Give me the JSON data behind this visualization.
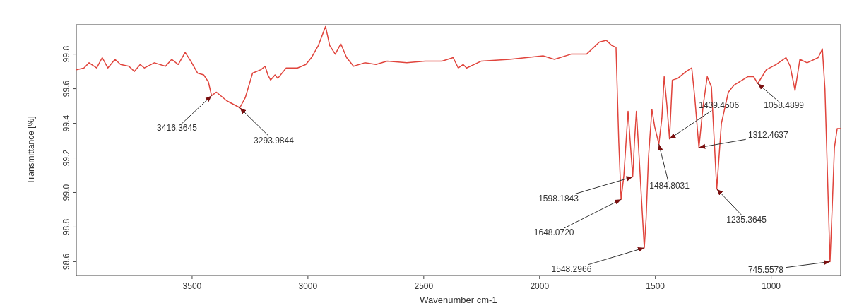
{
  "chart_data": {
    "type": "line",
    "xlabel": "Wavenumber cm-1",
    "ylabel": "Transmittance [%]",
    "xlim": [
      4000,
      700
    ],
    "ylim": [
      98.52,
      99.97
    ],
    "xticks": [
      3500,
      3000,
      2500,
      2000,
      1500,
      1000
    ],
    "yticks": [
      98.6,
      98.8,
      {
        "value": 99,
        "label": "99.0"
      },
      99.2,
      99.4,
      99.6,
      99.8
    ],
    "series": [
      {
        "color": "#e0443c",
        "x": [
          4000,
          3967,
          3945,
          3912,
          3888,
          3864,
          3833,
          3809,
          3773,
          3749,
          3724,
          3706,
          3663,
          3615,
          3588,
          3560,
          3530,
          3506,
          3476,
          3450,
          3430,
          3416,
          3395,
          3350,
          3294,
          3270,
          3250,
          3239,
          3203,
          3185,
          3173,
          3161,
          3142,
          3130,
          3094,
          3045,
          3009,
          2985,
          2955,
          2924,
          2906,
          2882,
          2858,
          2833,
          2803,
          2755,
          2706,
          2658,
          2573,
          2494,
          2421,
          2373,
          2351,
          2330,
          2315,
          2251,
          2130,
          1985,
          1936,
          1864,
          1797,
          1742,
          1712,
          1688,
          1670,
          1658,
          1648,
          1636,
          1618,
          1609,
          1598,
          1590,
          1582,
          1570,
          1548,
          1540,
          1530,
          1515,
          1503,
          1485,
          1472,
          1462,
          1450,
          1439,
          1427,
          1403,
          1367,
          1343,
          1330,
          1312,
          1294,
          1276,
          1258,
          1235,
          1215,
          1185,
          1161,
          1100,
          1076,
          1058,
          1021,
          979,
          936,
          918,
          897,
          876,
          845,
          797,
          779,
          768,
          746,
          735,
          727,
          715,
          700
        ],
        "values": [
          99.71,
          99.72,
          99.75,
          99.72,
          99.78,
          99.72,
          99.77,
          99.74,
          99.73,
          99.7,
          99.74,
          99.72,
          99.75,
          99.73,
          99.77,
          99.74,
          99.81,
          99.76,
          99.69,
          99.68,
          99.64,
          99.56,
          99.58,
          99.53,
          99.49,
          99.55,
          99.64,
          99.69,
          99.71,
          99.73,
          99.68,
          99.65,
          99.68,
          99.66,
          99.72,
          99.72,
          99.74,
          99.78,
          99.85,
          99.96,
          99.85,
          99.8,
          99.86,
          99.78,
          99.73,
          99.75,
          99.74,
          99.76,
          99.75,
          99.76,
          99.76,
          99.78,
          99.72,
          99.74,
          99.72,
          99.76,
          99.77,
          99.79,
          99.77,
          99.8,
          99.8,
          99.87,
          99.88,
          99.85,
          99.84,
          99.29,
          98.96,
          99.1,
          99.47,
          99.3,
          99.09,
          99.3,
          99.47,
          99.2,
          98.68,
          98.85,
          99.2,
          99.48,
          99.38,
          99.28,
          99.43,
          99.67,
          99.5,
          99.31,
          99.65,
          99.66,
          99.7,
          99.72,
          99.55,
          99.26,
          99.5,
          99.67,
          99.61,
          99.02,
          99.4,
          99.58,
          99.62,
          99.67,
          99.67,
          99.63,
          99.71,
          99.74,
          99.78,
          99.73,
          99.59,
          99.77,
          99.75,
          99.78,
          99.83,
          99.6,
          98.6,
          98.97,
          99.26,
          99.37,
          99.37
        ]
      }
    ],
    "annotations": [
      {
        "text": "3416.3645",
        "x": 3416,
        "y": 99.56
      },
      {
        "text": "3293.9844",
        "x": 3294,
        "y": 99.49
      },
      {
        "text": "1598.1843",
        "x": 1598,
        "y": 99.09
      },
      {
        "text": "1648.0720",
        "x": 1648,
        "y": 98.96
      },
      {
        "text": "1548.2966",
        "x": 1548,
        "y": 98.68
      },
      {
        "text": "1484.8031",
        "x": 1485,
        "y": 99.28
      },
      {
        "text": "1439.4506",
        "x": 1439,
        "y": 99.31
      },
      {
        "text": "1312.4637",
        "x": 1312,
        "y": 99.26
      },
      {
        "text": "1235.3645",
        "x": 1235,
        "y": 99.02
      },
      {
        "text": "1058.4899",
        "x": 1058,
        "y": 99.63
      },
      {
        "text": "745.5578",
        "x": 746,
        "y": 98.6
      }
    ]
  }
}
